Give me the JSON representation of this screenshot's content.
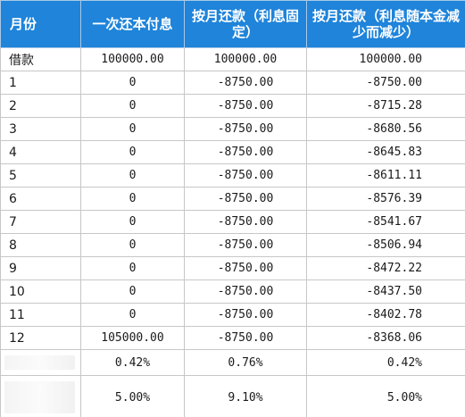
{
  "table": {
    "headers": [
      "月份",
      "一次还本付息",
      "按月还款（利息固定）",
      "按月还款（利息随本金减少而减少）"
    ],
    "rows": [
      [
        "借款",
        "100000.00",
        "100000.00",
        "100000.00"
      ],
      [
        "1",
        "0",
        "-8750.00",
        "-8750.00"
      ],
      [
        "2",
        "0",
        "-8750.00",
        "-8715.28"
      ],
      [
        "3",
        "0",
        "-8750.00",
        "-8680.56"
      ],
      [
        "4",
        "0",
        "-8750.00",
        "-8645.83"
      ],
      [
        "5",
        "0",
        "-8750.00",
        "-8611.11"
      ],
      [
        "6",
        "0",
        "-8750.00",
        "-8576.39"
      ],
      [
        "7",
        "0",
        "-8750.00",
        "-8541.67"
      ],
      [
        "8",
        "0",
        "-8750.00",
        "-8506.94"
      ],
      [
        "9",
        "0",
        "-8750.00",
        "-8472.22"
      ],
      [
        "10",
        "0",
        "-8750.00",
        "-8437.50"
      ],
      [
        "11",
        "0",
        "-8750.00",
        "-8402.78"
      ],
      [
        "12",
        "105000.00",
        "-8750.00",
        "-8368.06"
      ]
    ],
    "rate_rows": [
      [
        "",
        "0.42%",
        "0.76%",
        "0.42%"
      ],
      [
        "",
        "5.00%",
        "9.10%",
        "5.00%"
      ]
    ]
  },
  "colors": {
    "header_bg": "#1f84da",
    "header_text": "#ffffff",
    "grid": "#c7c7c7"
  }
}
